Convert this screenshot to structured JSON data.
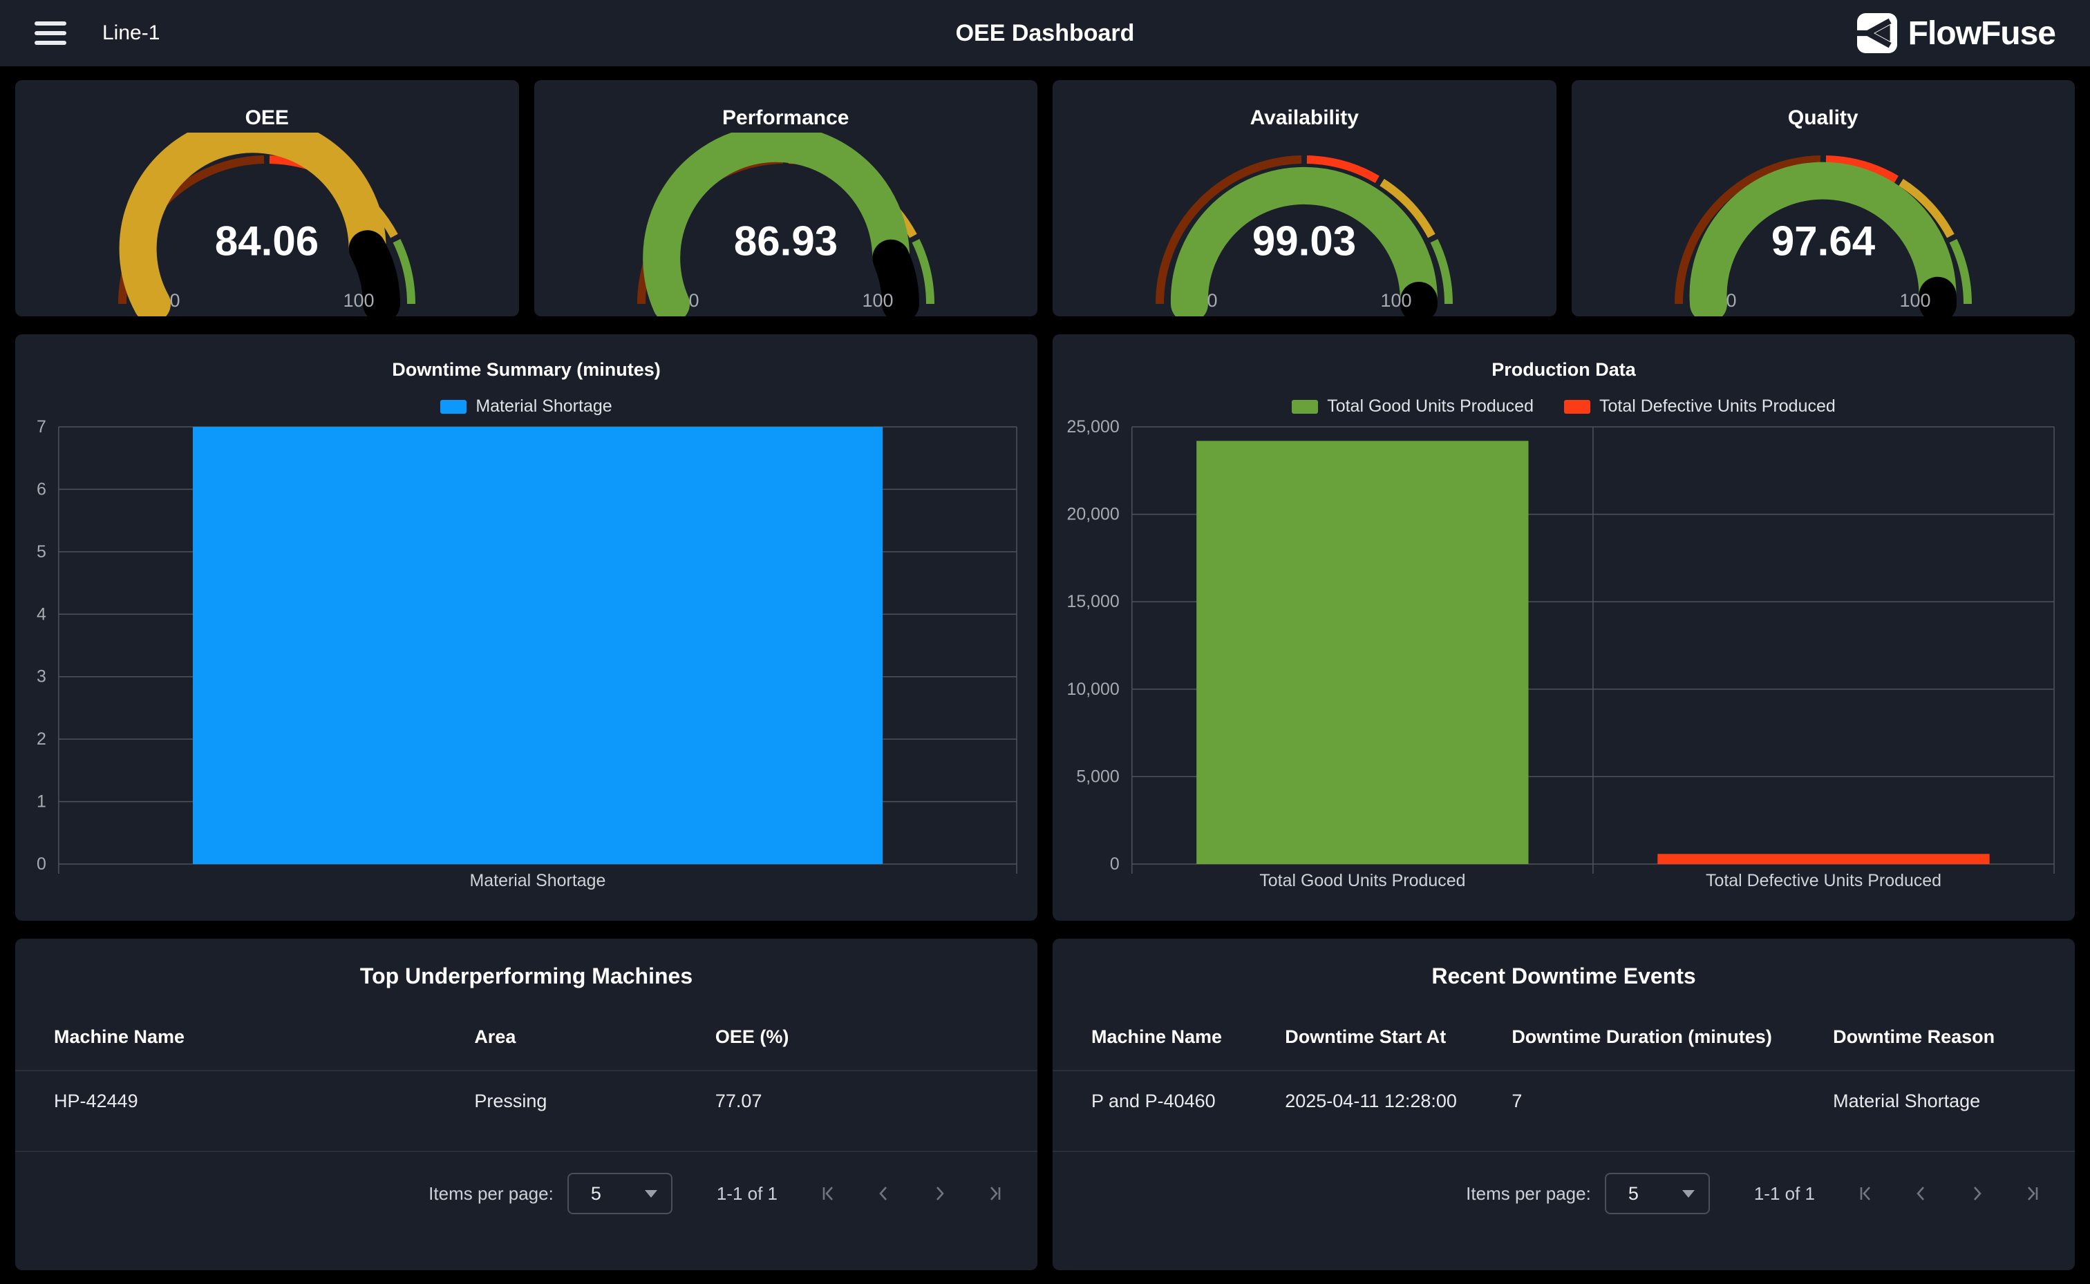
{
  "topbar": {
    "line_label": "Line-1",
    "title": "OEE Dashboard",
    "brand_name": "FlowFuse"
  },
  "gauge_style": {
    "segments": [
      {
        "from": 0,
        "to": 50,
        "color": "#7b2a06"
      },
      {
        "from": 50,
        "to": 67.5,
        "color": "#fb3a15"
      },
      {
        "from": 67.5,
        "to": 85,
        "color": "#d2a324"
      },
      {
        "from": 85,
        "to": 100,
        "color": "#67a23a"
      }
    ],
    "remainder_color": "#000000"
  },
  "gauges": [
    {
      "title": "OEE",
      "value": 84.06,
      "display": "84.06",
      "min_label": "0",
      "max_label": "100",
      "fill_color": "#d2a324"
    },
    {
      "title": "Performance",
      "value": 86.93,
      "display": "86.93",
      "min_label": "0",
      "max_label": "100",
      "fill_color": "#69a23b"
    },
    {
      "title": "Availability",
      "value": 99.03,
      "display": "99.03",
      "min_label": "0",
      "max_label": "100",
      "fill_color": "#69a23b"
    },
    {
      "title": "Quality",
      "value": 97.64,
      "display": "97.64",
      "min_label": "0",
      "max_label": "100",
      "fill_color": "#69a23b"
    }
  ],
  "chart_data": [
    {
      "type": "bar",
      "title": "Downtime Summary (minutes)",
      "categories": [
        "Material Shortage"
      ],
      "series": [
        {
          "name": "Material Shortage",
          "color": "#0d99fc",
          "values": [
            7
          ]
        }
      ],
      "ylim": [
        0,
        7
      ],
      "yticks": [
        0,
        1,
        2,
        3,
        4,
        5,
        6,
        7
      ],
      "legend_position": "top",
      "grid": true
    },
    {
      "type": "bar",
      "title": "Production Data",
      "categories": [
        "Total Good Units Produced",
        "Total Defective Units Produced"
      ],
      "series": [
        {
          "name": "Total Good Units Produced",
          "color": "#69a23b",
          "values": [
            24200,
            null
          ]
        },
        {
          "name": "Total Defective Units Produced",
          "color": "#fb3c15",
          "values": [
            null,
            580
          ]
        }
      ],
      "ylim": [
        0,
        25000
      ],
      "yticks": [
        0,
        5000,
        10000,
        15000,
        20000,
        25000
      ],
      "legend_position": "top",
      "grid": true
    }
  ],
  "tables": [
    {
      "title": "Top Underperforming Machines",
      "columns": [
        "Machine Name",
        "Area",
        "OEE (%)"
      ],
      "rows": [
        [
          "HP-42449",
          "Pressing",
          "77.07"
        ]
      ],
      "footer": {
        "items_per_page_label": "Items per page:",
        "page_size": "5",
        "range_label": "1-1 of 1",
        "nav_icons": [
          "first-page",
          "previous-page",
          "next-page",
          "last-page"
        ]
      }
    },
    {
      "title": "Recent Downtime Events",
      "columns": [
        "Machine Name",
        "Downtime Start At",
        "Downtime Duration (minutes)",
        "Downtime Reason"
      ],
      "rows": [
        [
          "P and P-40460",
          "2025-04-11 12:28:00",
          "7",
          "Material Shortage"
        ]
      ],
      "footer": {
        "items_per_page_label": "Items per page:",
        "page_size": "5",
        "range_label": "1-1 of 1",
        "nav_icons": [
          "first-page",
          "previous-page",
          "next-page",
          "last-page"
        ]
      }
    }
  ],
  "colors": {
    "background": "#000000",
    "surface": "#1b1f2a",
    "grid_line": "#4e535b",
    "tick_label": "#a7abb1",
    "bar_blue": "#0d99fc",
    "bar_green": "#69a23b",
    "bar_red": "#fb3c15",
    "gauge_yellow": "#d2a324",
    "gauge_maroon": "#7b2a06",
    "gauge_red": "#fb3a15",
    "gauge_green": "#67a23a"
  }
}
